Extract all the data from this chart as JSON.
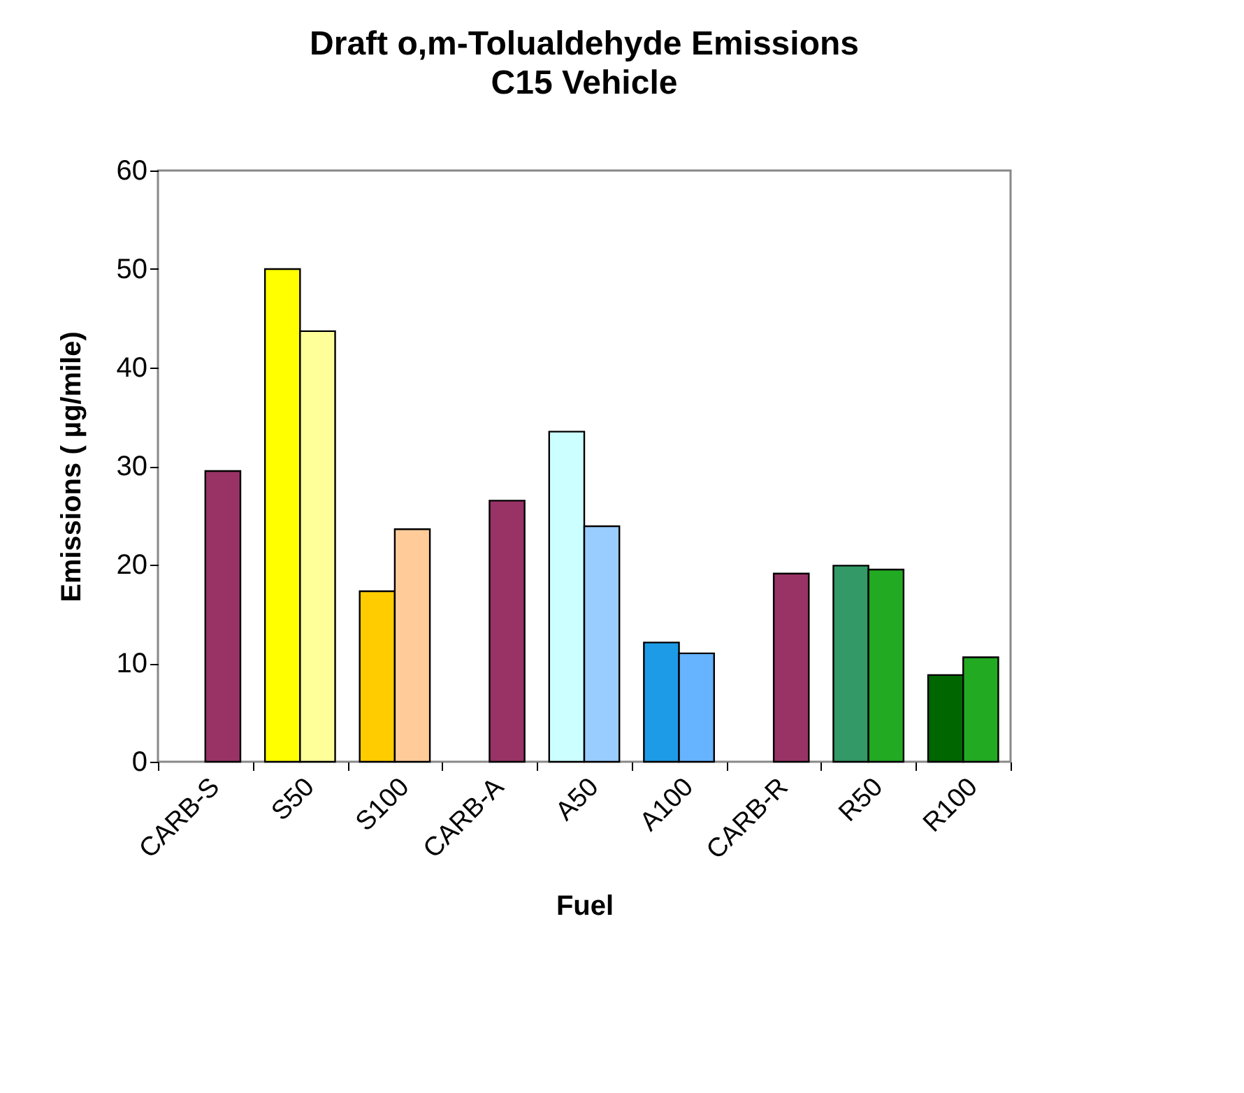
{
  "chart_data": {
    "type": "bar",
    "title": "Draft o,m-Tolualdehyde Emissions",
    "subtitle": "C15 Vehicle",
    "xlabel": "Fuel",
    "ylabel": "Emissions ( µg/mile)",
    "categories": [
      "CARB-S",
      "S50",
      "S100",
      "CARB-A",
      "A50",
      "A100",
      "CARB-R",
      "R50",
      "R100"
    ],
    "series": [
      {
        "values": [
          null,
          50,
          17.3,
          null,
          33.5,
          12.1,
          null,
          19.9,
          8.8
        ],
        "colors": [
          null,
          "#ffff00",
          "#ffcc00",
          null,
          "#ccffff",
          "#1e9be6",
          null,
          "#339966",
          "#006600"
        ]
      },
      {
        "values": [
          29.5,
          43.7,
          23.6,
          26.5,
          23.9,
          11.0,
          19.1,
          19.5,
          10.6
        ],
        "colors": [
          "#993366",
          "#ffff99",
          "#ffcc99",
          "#993366",
          "#99ccff",
          "#66b3ff",
          "#993366",
          "#22aa22",
          "#22aa22"
        ]
      }
    ],
    "ylim": [
      0,
      60
    ],
    "yticks": [
      0,
      10,
      20,
      30,
      40,
      50,
      60
    ]
  }
}
